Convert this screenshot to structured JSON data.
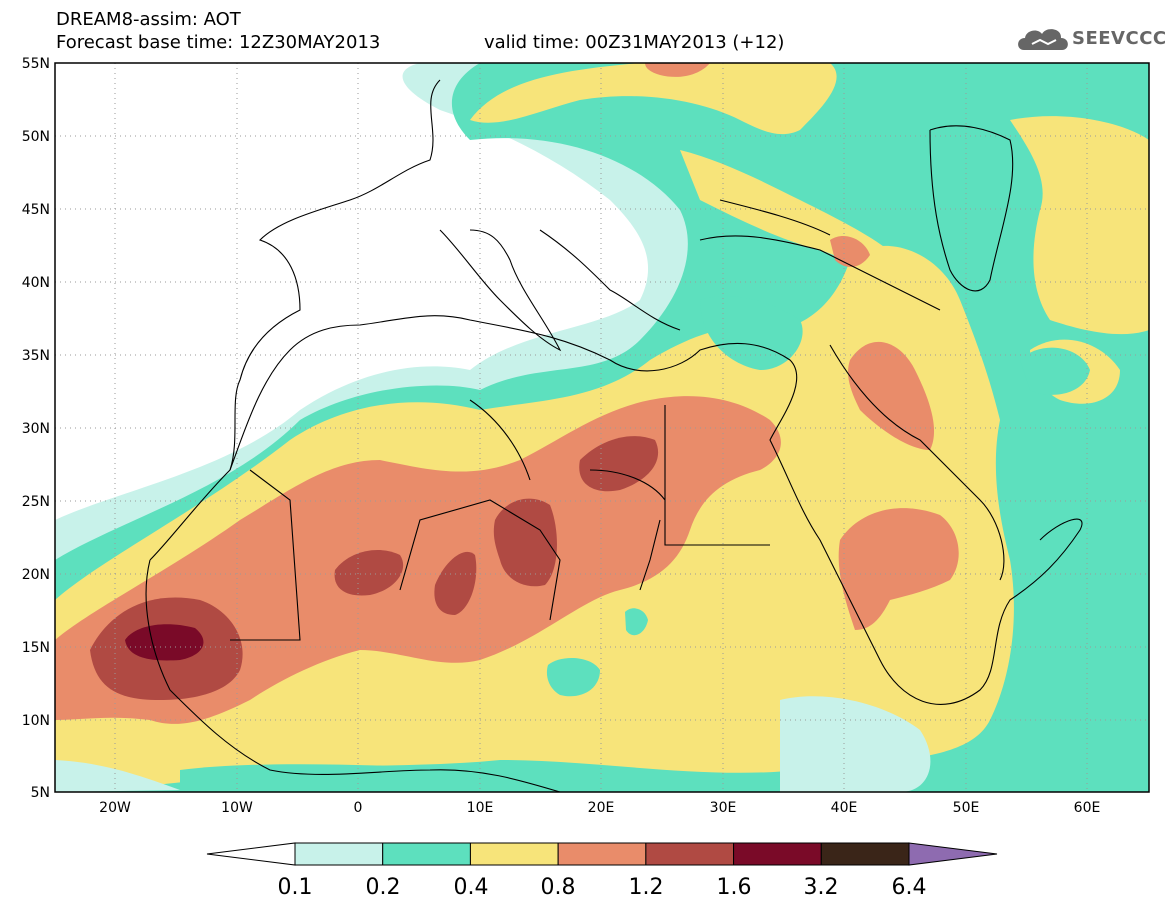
{
  "header": {
    "line1": "DREAM8-assim: AOT",
    "line2": "Forecast base time: 12Z30MAY2013",
    "valid": "valid time: 00Z31MAY2013 (+12)"
  },
  "logo": {
    "text": "SEEVCCC",
    "icon": "cloud-icon"
  },
  "axes": {
    "lat_labels": [
      "55N",
      "50N",
      "45N",
      "40N",
      "35N",
      "30N",
      "25N",
      "20N",
      "15N",
      "10N",
      "5N"
    ],
    "lon_labels": [
      "20W",
      "10W",
      "0",
      "10E",
      "20E",
      "30E",
      "40E",
      "50E",
      "60E"
    ],
    "lat_range": [
      5,
      55
    ],
    "lon_range": [
      -25,
      65
    ]
  },
  "colorbar": {
    "ticks": [
      "0.1",
      "0.2",
      "0.4",
      "0.8",
      "1.2",
      "1.6",
      "3.2",
      "6.4"
    ],
    "colors": [
      "#ffffff",
      "#c8f2ea",
      "#5de0be",
      "#f7e47a",
      "#e98c6a",
      "#b04a43",
      "#7a0a28",
      "#3a2518",
      "#8e6bb0"
    ]
  }
}
